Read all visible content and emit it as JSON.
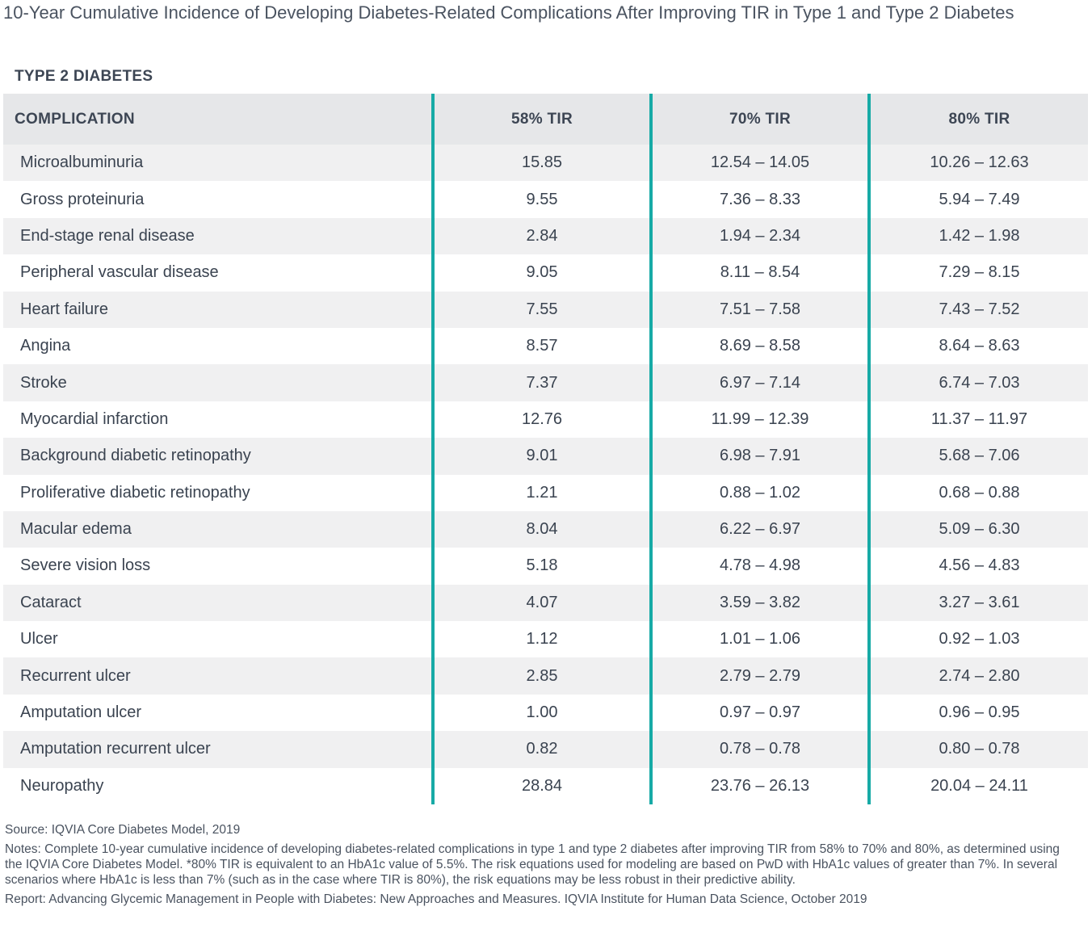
{
  "title": "10-Year Cumulative Incidence of Developing Diabetes-Related Complications After Improving TIR in Type 1 and Type 2 Diabetes",
  "subtitle": "TYPE 2 DIABETES",
  "colors": {
    "accent_divider": "#17aaa6",
    "header_bg": "#e6e7e9",
    "stripe_bg": "#f0f0f1"
  },
  "chart_data": {
    "type": "table",
    "columns": [
      "COMPLICATION",
      "58% TIR",
      "70% TIR",
      "80% TIR"
    ],
    "rows": [
      [
        "Microalbuminuria",
        "15.85",
        "12.54 – 14.05",
        "10.26 – 12.63"
      ],
      [
        "Gross proteinuria",
        "9.55",
        "7.36 – 8.33",
        "5.94 – 7.49"
      ],
      [
        "End-stage renal disease",
        "2.84",
        "1.94 – 2.34",
        "1.42 – 1.98"
      ],
      [
        "Peripheral vascular disease",
        "9.05",
        "8.11 – 8.54",
        "7.29 – 8.15"
      ],
      [
        "Heart failure",
        "7.55",
        "7.51 – 7.58",
        "7.43 – 7.52"
      ],
      [
        "Angina",
        "8.57",
        "8.69 – 8.58",
        "8.64 – 8.63"
      ],
      [
        "Stroke",
        "7.37",
        "6.97 – 7.14",
        "6.74 – 7.03"
      ],
      [
        "Myocardial infarction",
        "12.76",
        "11.99 – 12.39",
        "11.37 – 11.97"
      ],
      [
        "Background diabetic retinopathy",
        "9.01",
        "6.98 – 7.91",
        "5.68 – 7.06"
      ],
      [
        "Proliferative diabetic retinopathy",
        "1.21",
        "0.88 – 1.02",
        "0.68 – 0.88"
      ],
      [
        "Macular edema",
        "8.04",
        "6.22 – 6.97",
        "5.09 – 6.30"
      ],
      [
        "Severe vision loss",
        "5.18",
        "4.78 – 4.98",
        "4.56 – 4.83"
      ],
      [
        "Cataract",
        "4.07",
        "3.59 – 3.82",
        "3.27 – 3.61"
      ],
      [
        "Ulcer",
        "1.12",
        "1.01 – 1.06",
        "0.92 – 1.03"
      ],
      [
        "Recurrent ulcer",
        "2.85",
        "2.79 – 2.79",
        "2.74 – 2.80"
      ],
      [
        "Amputation ulcer",
        "1.00",
        "0.97 – 0.97",
        "0.96 – 0.95"
      ],
      [
        "Amputation recurrent ulcer",
        "0.82",
        "0.78 – 0.78",
        "0.80 – 0.78"
      ],
      [
        "Neuropathy",
        "28.84",
        "23.76 – 26.13",
        "20.04 – 24.11"
      ]
    ]
  },
  "footer": {
    "source": "Source: IQVIA Core Diabetes Model, 2019",
    "notes": "Notes: Complete 10-year cumulative incidence of developing diabetes-related complications in type 1 and type 2 diabetes after improving TIR from 58% to 70% and 80%, as determined using the IQVIA Core Diabetes Model. *80% TIR is equivalent to an HbA1c value of 5.5%. The risk equations used for modeling are based on PwD with HbA1c values of greater than 7%. In several scenarios where HbA1c is less than 7% (such as in the case where TIR is 80%), the risk equations may be less robust in their predictive ability.",
    "report": "Report: Advancing Glycemic Management in People with Diabetes: New Approaches and Measures. IQVIA Institute for Human Data Science, October 2019"
  }
}
